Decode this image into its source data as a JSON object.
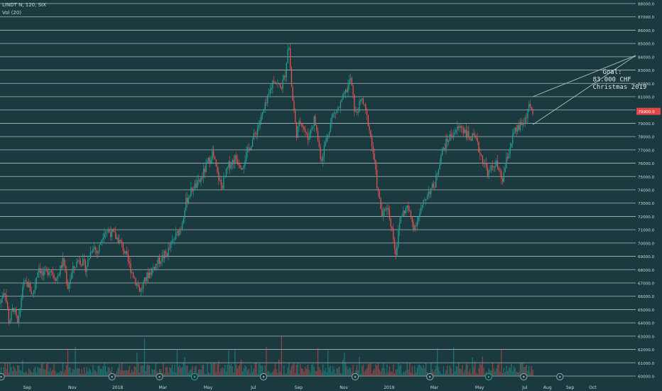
{
  "header": {
    "symbol_line": "LINDT N, 120, SIX",
    "volume_label": "Vol (20)"
  },
  "colors": {
    "background": "#1a3a40",
    "grid": "#c9d2d2",
    "up": "#26a69a",
    "down": "#ef5350",
    "text": "#c8d6d8",
    "price_badge": "#e04848",
    "annotation": "#dfe6e6",
    "trendline": "#aebcbc"
  },
  "chart_data": {
    "type": "candlestick",
    "ylim": [
      60000,
      88000
    ],
    "y_ticks": [
      60000,
      61000,
      62000,
      63000,
      64000,
      65000,
      66000,
      67000,
      68000,
      69000,
      70000,
      71000,
      72000,
      73000,
      74000,
      75000,
      76000,
      77000,
      78000,
      79000,
      80000,
      81000,
      82000,
      83000,
      84000,
      85000,
      86000,
      87000,
      88000
    ],
    "y_tick_labels": [
      "60000.0",
      "61000.0",
      "62000.0",
      "63000.0",
      "64000.0",
      "65000.0",
      "66000.0",
      "67000.0",
      "68000.0",
      "69000.0",
      "70000.0",
      "71000.0",
      "72000.0",
      "73000.0",
      "74000.0",
      "75000.0",
      "76000.0",
      "77000.0",
      "78000.0",
      "79000.0",
      "80000.0",
      "81000.0",
      "82000.0",
      "83000.0",
      "84000.0",
      "85000.0",
      "86000.0",
      "87000.0",
      "88000.0"
    ],
    "x_ticks": [
      "Sep",
      "Nov",
      "2018",
      "Mar",
      "May",
      "Jul",
      "Sep",
      "Nov",
      "2019",
      "Mar",
      "May",
      "Jul",
      "Aug",
      "Sep",
      "Oct"
    ],
    "x_tick_months": [
      0,
      2,
      4,
      6,
      8,
      10,
      12,
      14,
      16,
      18,
      20,
      22,
      23,
      24,
      25
    ],
    "x_range_months": [
      -1.2,
      26.9
    ],
    "last_price": 79900,
    "last_price_label": "79900.0",
    "price_path": [
      [
        -1.2,
        65500
      ],
      [
        -1.0,
        66600
      ],
      [
        -0.8,
        64000
      ],
      [
        -0.6,
        65200
      ],
      [
        -0.4,
        63700
      ],
      [
        -0.2,
        66800
      ],
      [
        0.0,
        67000
      ],
      [
        0.25,
        66100
      ],
      [
        0.5,
        68300
      ],
      [
        0.7,
        67500
      ],
      [
        1.0,
        68100
      ],
      [
        1.3,
        67300
      ],
      [
        1.6,
        68700
      ],
      [
        1.8,
        66700
      ],
      [
        2.0,
        67900
      ],
      [
        2.3,
        68900
      ],
      [
        2.6,
        68100
      ],
      [
        2.9,
        69900
      ],
      [
        3.1,
        69200
      ],
      [
        3.4,
        71000
      ],
      [
        3.7,
        70800
      ],
      [
        4.0,
        70300
      ],
      [
        4.2,
        69800
      ],
      [
        4.5,
        68400
      ],
      [
        4.8,
        67100
      ],
      [
        5.0,
        66400
      ],
      [
        5.3,
        67500
      ],
      [
        5.6,
        68200
      ],
      [
        5.9,
        68800
      ],
      [
        6.2,
        69300
      ],
      [
        6.5,
        70300
      ],
      [
        6.8,
        71200
      ],
      [
        7.0,
        73000
      ],
      [
        7.3,
        74100
      ],
      [
        7.6,
        74500
      ],
      [
        7.9,
        75700
      ],
      [
        8.2,
        76800
      ],
      [
        8.4,
        75200
      ],
      [
        8.6,
        74200
      ],
      [
        8.9,
        75800
      ],
      [
        9.2,
        76400
      ],
      [
        9.5,
        75800
      ],
      [
        9.8,
        77100
      ],
      [
        10.1,
        78300
      ],
      [
        10.3,
        79200
      ],
      [
        10.6,
        80600
      ],
      [
        10.9,
        82400
      ],
      [
        11.2,
        81600
      ],
      [
        11.4,
        82600
      ],
      [
        11.55,
        85300
      ],
      [
        11.7,
        81400
      ],
      [
        11.9,
        78200
      ],
      [
        12.1,
        79300
      ],
      [
        12.4,
        77800
      ],
      [
        12.7,
        79400
      ],
      [
        13.0,
        76200
      ],
      [
        13.2,
        77700
      ],
      [
        13.5,
        79600
      ],
      [
        13.8,
        80200
      ],
      [
        14.1,
        81400
      ],
      [
        14.3,
        82400
      ],
      [
        14.5,
        79600
      ],
      [
        14.8,
        80800
      ],
      [
        15.1,
        78900
      ],
      [
        15.3,
        76700
      ],
      [
        15.5,
        73900
      ],
      [
        15.7,
        71900
      ],
      [
        15.9,
        72900
      ],
      [
        16.1,
        71300
      ],
      [
        16.3,
        69200
      ],
      [
        16.5,
        72000
      ],
      [
        16.8,
        72700
      ],
      [
        17.1,
        71200
      ],
      [
        17.4,
        72400
      ],
      [
        17.7,
        73800
      ],
      [
        18.0,
        74300
      ],
      [
        18.3,
        76700
      ],
      [
        18.6,
        77800
      ],
      [
        18.9,
        78400
      ],
      [
        19.2,
        78800
      ],
      [
        19.5,
        78000
      ],
      [
        19.8,
        77800
      ],
      [
        20.1,
        76400
      ],
      [
        20.4,
        75200
      ],
      [
        20.7,
        76100
      ],
      [
        21.0,
        74600
      ],
      [
        21.2,
        76300
      ],
      [
        21.5,
        78200
      ],
      [
        21.8,
        78800
      ],
      [
        22.0,
        79200
      ],
      [
        22.15,
        80200
      ],
      [
        22.35,
        79900
      ]
    ],
    "trendlines": [
      {
        "from": [
          22.35,
          81000
        ],
        "to": [
          26.9,
          84100
        ]
      },
      {
        "from": [
          22.35,
          78900
        ],
        "to": [
          26.9,
          84100
        ]
      }
    ],
    "annotation": [
      "Goal:",
      "83.000 CHF",
      "Christmas 2019"
    ],
    "annotation_anchor": [
      25.0,
      82700
    ]
  }
}
